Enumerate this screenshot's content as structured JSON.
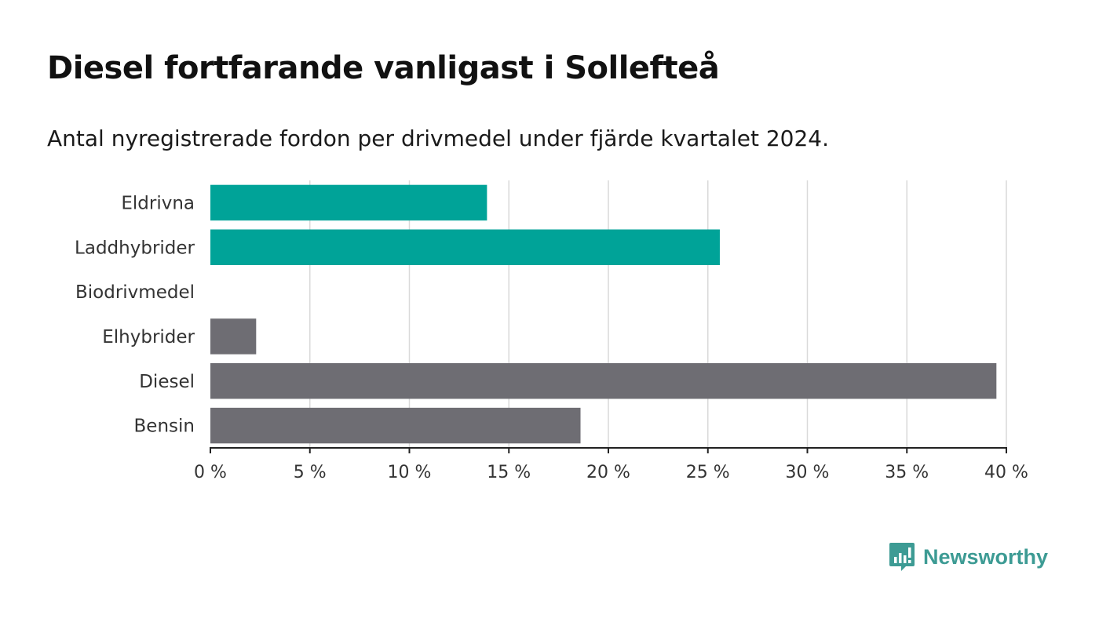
{
  "chart_data": {
    "type": "bar",
    "orientation": "horizontal",
    "title": "Diesel fortfarande vanligast i Sollefteå",
    "subtitle": "Antal nyregistrerade fordon per drivmedel under fjärde kvartalet 2024.",
    "categories": [
      "Eldrivna",
      "Laddhybrider",
      "Biodrivmedel",
      "Elhybrider",
      "Diesel",
      "Bensin"
    ],
    "values": [
      13.9,
      25.6,
      0,
      2.3,
      39.5,
      18.6
    ],
    "bar_colors": [
      "#00a398",
      "#00a398",
      "#00a398",
      "#6e6d73",
      "#6e6d73",
      "#6e6d73"
    ],
    "xlim": [
      0,
      40
    ],
    "ticks": [
      0,
      5,
      10,
      15,
      20,
      25,
      30,
      35,
      40
    ],
    "tick_labels": [
      "0 %",
      "5 %",
      "10 %",
      "15 %",
      "20 %",
      "25 %",
      "30 %",
      "35 %",
      "40 %"
    ],
    "xlabel": "",
    "ylabel": "",
    "grid": true
  },
  "brand": {
    "name": "Newsworthy",
    "color": "#3d9b94",
    "icon": "newsworthy-logo-icon"
  }
}
